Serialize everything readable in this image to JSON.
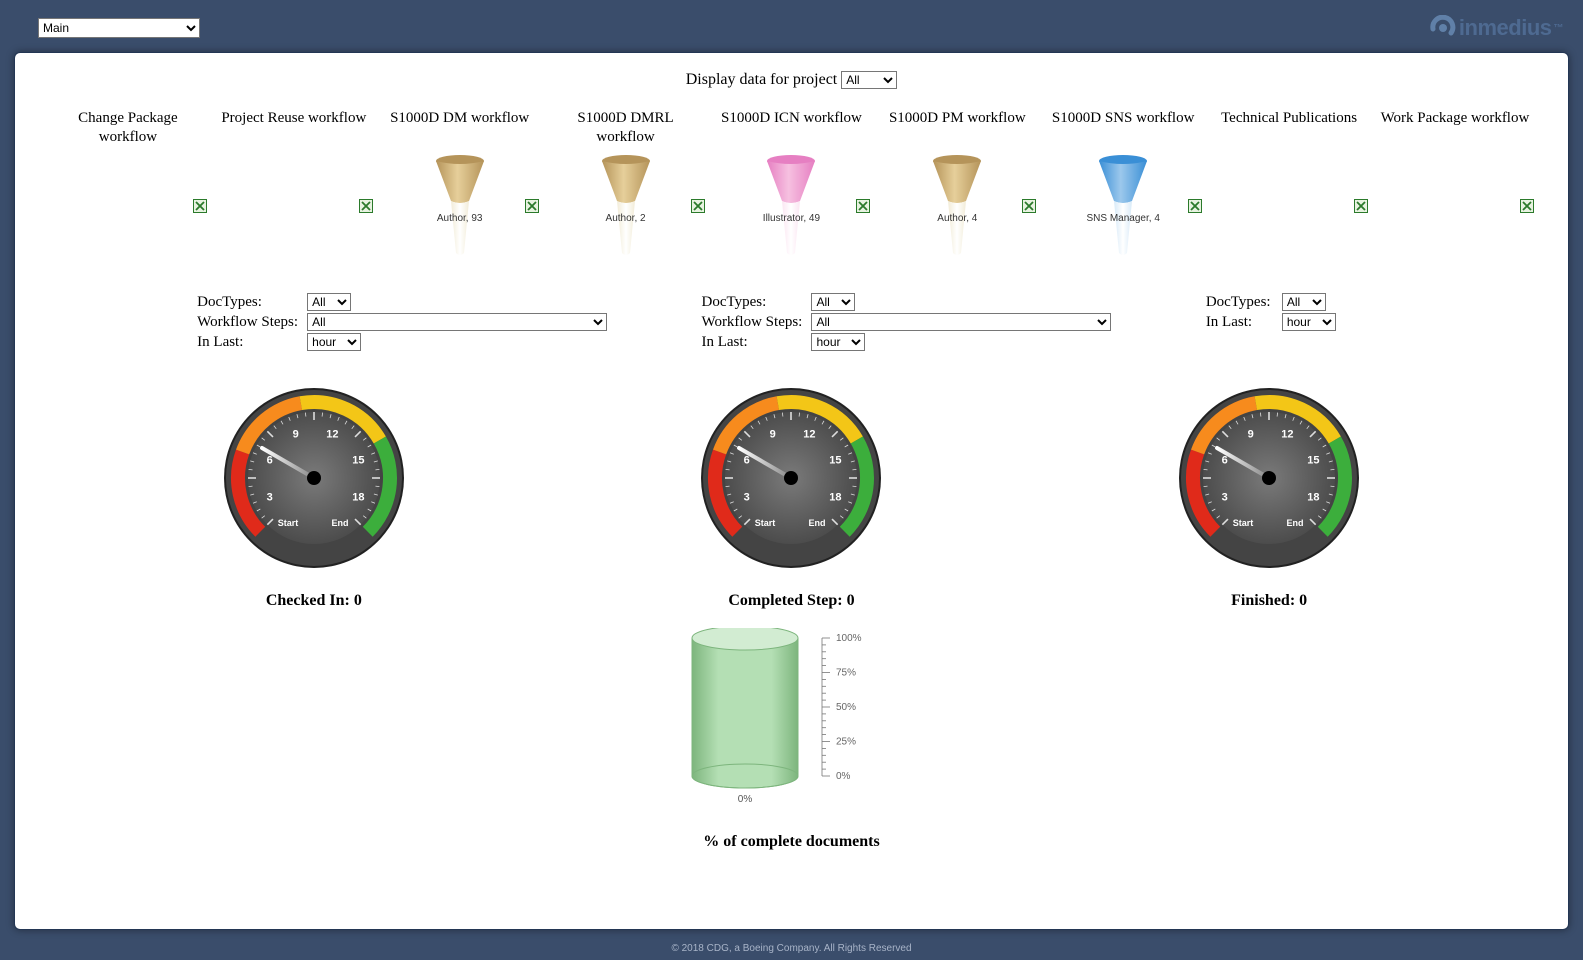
{
  "page_select": {
    "value": "Main"
  },
  "logo_text": "inmedius",
  "project_filter": {
    "label": "Display data for project",
    "value": "All"
  },
  "workflows": [
    {
      "title": "Change Package workflow",
      "funnel": null
    },
    {
      "title": "Project Reuse workflow",
      "funnel": null
    },
    {
      "title": "S1000D DM workflow",
      "funnel": {
        "label": "Author, 93",
        "top": "#b5945a",
        "mid": "#e6cf9a",
        "stem": "#f2ecd8"
      }
    },
    {
      "title": "S1000D DMRL workflow",
      "funnel": {
        "label": "Author, 2",
        "top": "#b5945a",
        "mid": "#e6cf9a",
        "stem": "#f2ecd8"
      }
    },
    {
      "title": "S1000D ICN workflow",
      "funnel": {
        "label": "Illustrator, 49",
        "top": "#e67fc2",
        "mid": "#f6c0e0",
        "stem": "#fbe6f2"
      }
    },
    {
      "title": "S1000D PM workflow",
      "funnel": {
        "label": "Author, 4",
        "top": "#b5945a",
        "mid": "#e6cf9a",
        "stem": "#f2ecd8"
      }
    },
    {
      "title": "S1000D SNS workflow",
      "funnel": {
        "label": "SNS Manager, 4",
        "top": "#3a8fd6",
        "mid": "#9cc8ec",
        "stem": "#d8eaf8"
      }
    },
    {
      "title": "Technical Publications",
      "funnel": null
    },
    {
      "title": "Work Package workflow",
      "funnel": null
    }
  ],
  "filter_labels": {
    "doctypes": "DocTypes:",
    "steps": "Workflow Steps:",
    "inlast": "In Last:",
    "doctypes_val": "All",
    "steps_val": "All",
    "inlast_val": "hour"
  },
  "gauges": {
    "scale_nums": [
      "3",
      "6",
      "9",
      "12",
      "15",
      "18"
    ],
    "start": "Start",
    "end": "End",
    "ring_colors": {
      "red": "#e02a1a",
      "orange": "#f78b1d",
      "yellow": "#f3c617",
      "green": "#3cae3c"
    },
    "face_inner": "#3a3a3a",
    "face_outer": "#7a7a7a",
    "bezel": "#222222",
    "needle_angle_deg": -150,
    "captions": [
      "Checked In: 0",
      "Completed Step: 0",
      "Finished: 0"
    ]
  },
  "cylinder": {
    "value_pct": 0,
    "body": "#b4dfb4",
    "body_edge": "#7db57d",
    "top": "#d2ecd2",
    "scale": [
      "0%",
      "25%",
      "50%",
      "75%",
      "100%"
    ],
    "caption": "% of complete documents",
    "bottom_label": "0%"
  },
  "footer": "© 2018 CDG, a Boeing Company. All Rights Reserved"
}
